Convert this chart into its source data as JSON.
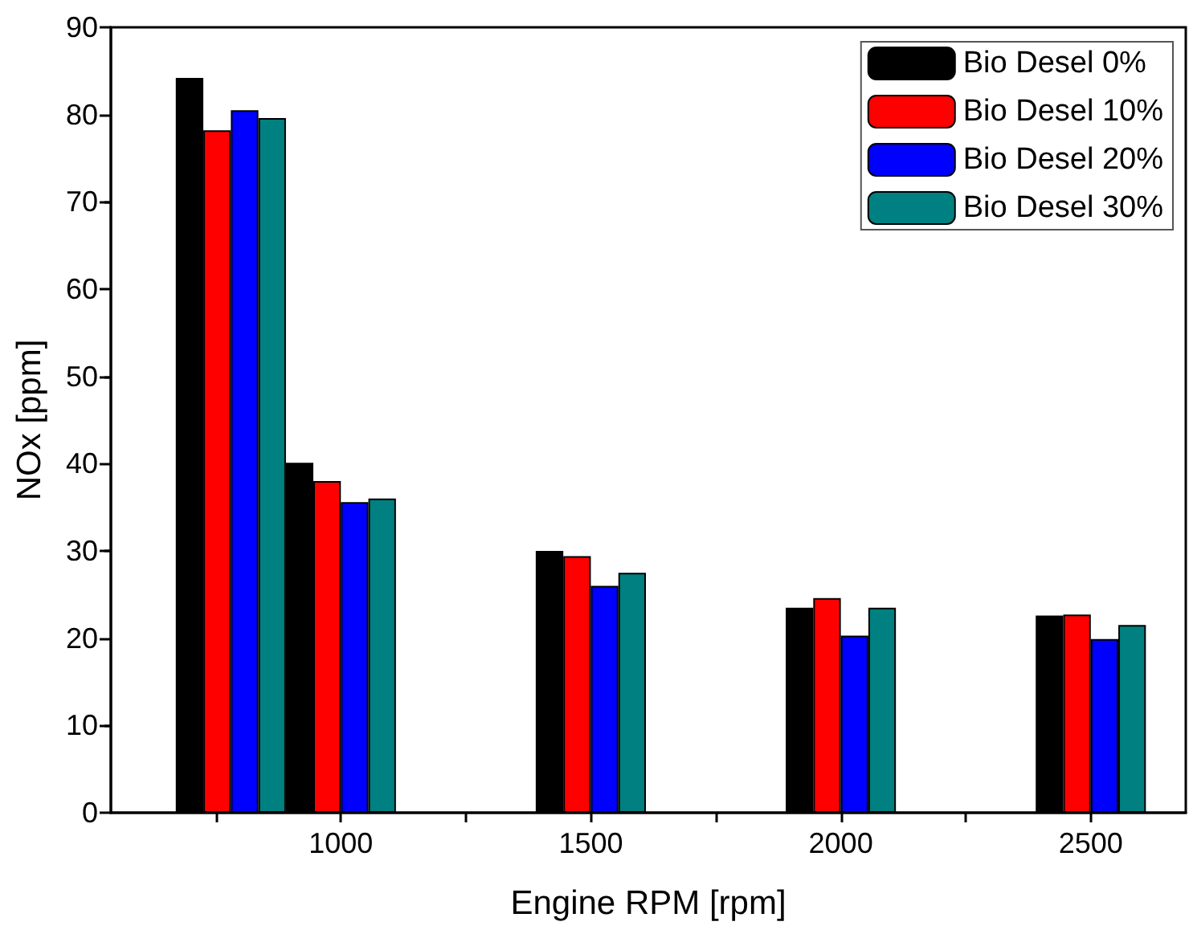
{
  "chart_data": {
    "type": "bar",
    "xlabel": "Engine RPM [rpm]",
    "ylabel": "NOx [ppm]",
    "x": [
      780,
      1000,
      1500,
      2000,
      2500
    ],
    "series": [
      {
        "name": "Bio Desel 0%",
        "color": "#000000",
        "values": [
          84.2,
          40.1,
          30,
          23.5,
          22.6
        ]
      },
      {
        "name": "Bio Desel 10%",
        "color": "#ff0000",
        "values": [
          78.2,
          38,
          29.4,
          24.6,
          22.7
        ]
      },
      {
        "name": "Bio Desel 20%",
        "color": "#0000ff",
        "values": [
          80.5,
          35.6,
          26,
          20.3,
          19.9
        ]
      },
      {
        "name": "Bio Desel 30%",
        "color": "#008080",
        "values": [
          79.6,
          36,
          27.5,
          23.5,
          21.5
        ]
      }
    ],
    "xlim": [
      540,
      2690
    ],
    "xticks": [
      {
        "value": 750,
        "label": null
      },
      1000,
      {
        "value": 1250,
        "label": null
      },
      1500,
      {
        "value": 1750,
        "label": null
      },
      2000,
      {
        "value": 2250,
        "label": null
      },
      2500
    ],
    "ylim": [
      0,
      90
    ],
    "yticks": [
      0,
      10,
      20,
      30,
      40,
      50,
      60,
      70,
      80,
      90
    ],
    "grid": false,
    "legend": "top right"
  }
}
